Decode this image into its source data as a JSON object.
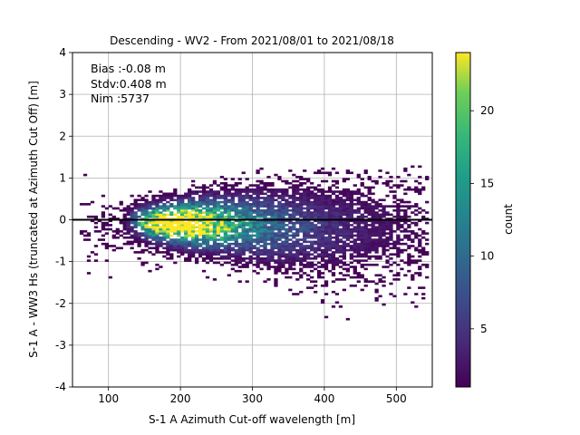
{
  "chart_data": {
    "type": "heatmap",
    "title": "Descending - WV2 - From 2021/08/01 to 2021/08/18",
    "xlabel": "S-1 A Azimuth Cut-off wavelength [m]",
    "ylabel": "S-1 A - WW3 Hs (truncated at Azimuth Cut Off) [m]",
    "xlim": [
      50,
      550
    ],
    "ylim": [
      -4,
      4
    ],
    "xticks": [
      100,
      200,
      300,
      400,
      500
    ],
    "yticks": [
      -4,
      -3,
      -2,
      -1,
      0,
      1,
      2,
      3,
      4
    ],
    "grid": true,
    "reference_line_y": 0,
    "stats": [
      "Bias :-0.08 m",
      "Stdv:0.408 m",
      "Nim :5737"
    ],
    "colorbar": {
      "label": "count",
      "range": [
        1,
        24
      ],
      "ticks": [
        5,
        10,
        15,
        20
      ],
      "colormap": "viridis"
    },
    "density_cores": [
      {
        "x": 185,
        "y": -0.12,
        "peak_count": 24
      },
      {
        "x": 160,
        "y": -0.05,
        "peak_count": 14
      },
      {
        "x": 225,
        "y": -0.1,
        "peak_count": 9
      },
      {
        "x": 280,
        "y": -0.2,
        "peak_count": 4
      },
      {
        "x": 350,
        "y": -0.4,
        "peak_count": 2
      }
    ]
  }
}
